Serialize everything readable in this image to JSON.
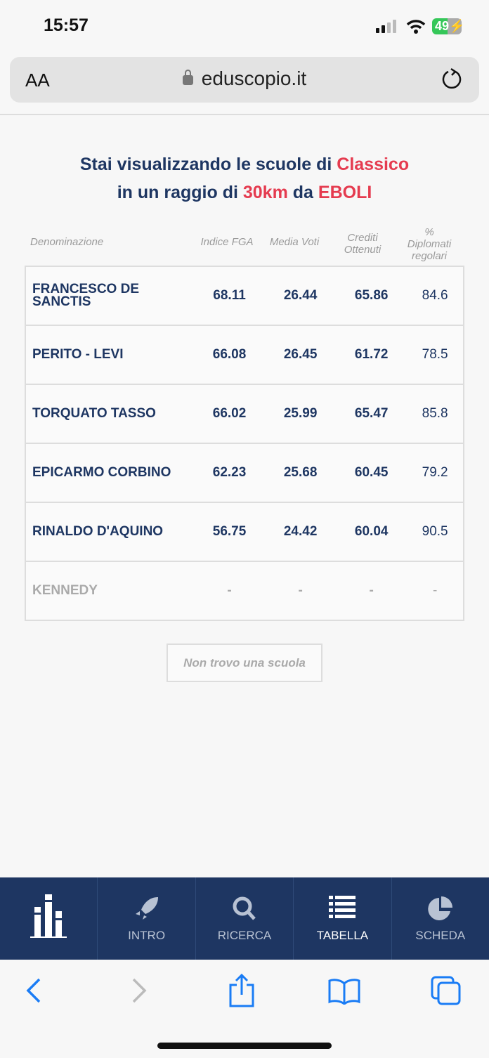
{
  "status": {
    "time": "15:57",
    "battery": "49"
  },
  "browser": {
    "text_size": "AA",
    "url": "eduscopio.it"
  },
  "heading": {
    "line1_prefix": "Stai visualizzando le scuole di ",
    "type": "Classico",
    "line2_prefix": "in un raggio di ",
    "radius": "30km",
    "line2_mid": " da ",
    "city": "EBOLI"
  },
  "columns": [
    "Denominazione",
    "Indice FGA",
    "Media Voti",
    "Crediti Ottenuti",
    "% Diplomati regolari"
  ],
  "rows": [
    {
      "name": "FRANCESCO DE SANCTIS",
      "fga": "68.11",
      "media": "26.44",
      "crediti": "65.86",
      "diplomati": "84.6"
    },
    {
      "name": "PERITO - LEVI",
      "fga": "66.08",
      "media": "26.45",
      "crediti": "61.72",
      "diplomati": "78.5"
    },
    {
      "name": "TORQUATO TASSO",
      "fga": "66.02",
      "media": "25.99",
      "crediti": "65.47",
      "diplomati": "85.8"
    },
    {
      "name": "EPICARMO CORBINO",
      "fga": "62.23",
      "media": "25.68",
      "crediti": "60.45",
      "diplomati": "79.2"
    },
    {
      "name": "RINALDO D'AQUINO",
      "fga": "56.75",
      "media": "24.42",
      "crediti": "60.04",
      "diplomati": "90.5"
    },
    {
      "name": "KENNEDY",
      "fga": "-",
      "media": "-",
      "crediti": "-",
      "diplomati": "-"
    }
  ],
  "not_found_button": "Non trovo una scuola",
  "nav": [
    {
      "label": "",
      "icon": "logo-bars-icon"
    },
    {
      "label": "INTRO",
      "icon": "rocket-icon"
    },
    {
      "label": "RICERCA",
      "icon": "search-icon"
    },
    {
      "label": "TABELLA",
      "icon": "list-icon",
      "active": true
    },
    {
      "label": "SCHEDA",
      "icon": "pie-chart-icon"
    }
  ],
  "colors": {
    "navy": "#1e3662",
    "accent": "#e53b4f",
    "ios_blue": "#1a7cf5"
  }
}
